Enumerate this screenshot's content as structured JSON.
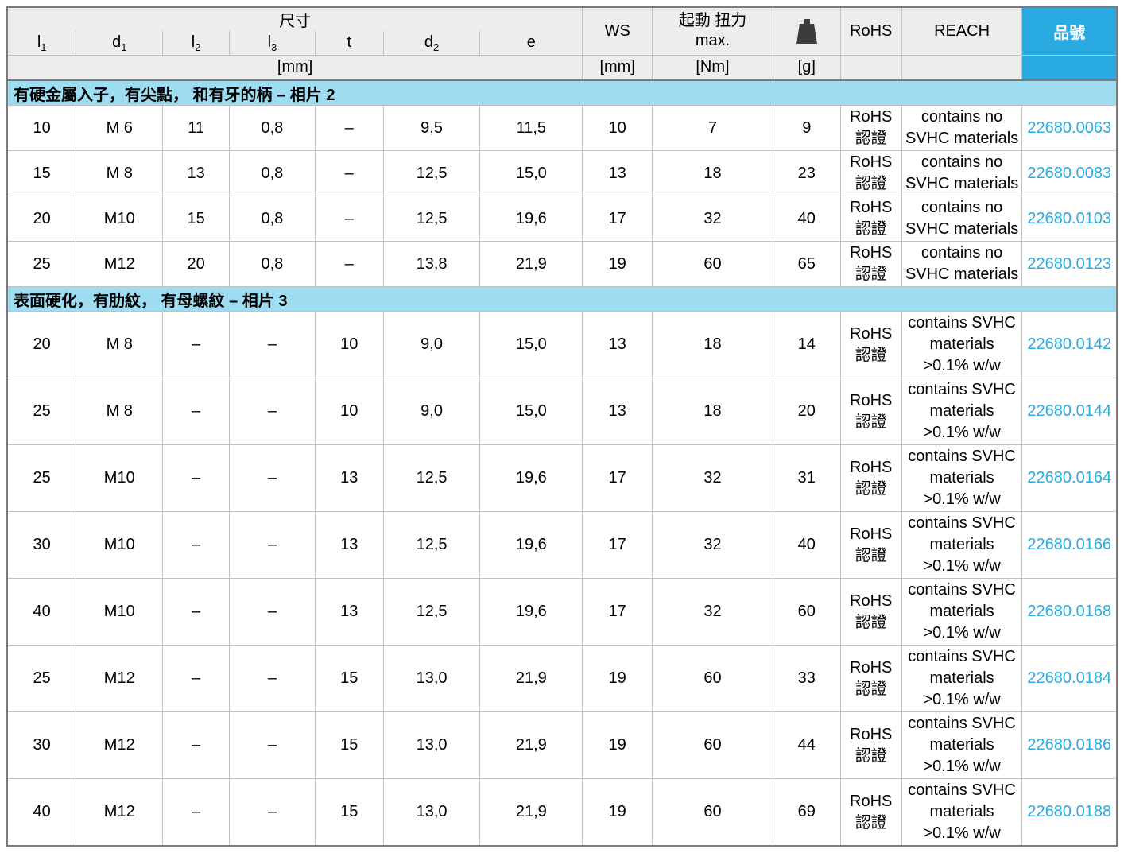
{
  "table": {
    "header": {
      "dim_group": "尺寸",
      "dim_unit": "[mm]",
      "dims": [
        {
          "base": "l",
          "sub": "1"
        },
        {
          "base": "d",
          "sub": "1"
        },
        {
          "base": "l",
          "sub": "2"
        },
        {
          "base": "l",
          "sub": "3"
        },
        {
          "base": "t",
          "sub": ""
        },
        {
          "base": "d",
          "sub": "2"
        },
        {
          "base": "e",
          "sub": ""
        }
      ],
      "ws_label": "WS",
      "ws_unit": "[mm]",
      "torque_label": "起動 扭力",
      "torque_label_2": "max.",
      "torque_unit": "[Nm]",
      "weight_icon": "weight-icon",
      "weight_unit": "[g]",
      "rohs_label": "RoHS",
      "reach_label": "REACH",
      "part_label": "品號"
    },
    "sections": [
      {
        "title": "有硬金屬入子，有尖點， 和有牙的柄 – 相片 2",
        "rohs_lines": [
          "RoHS",
          "認證"
        ],
        "reach_lines": [
          "contains no",
          "SVHC materials"
        ],
        "rows": [
          {
            "l1": "10",
            "d1": "M 6",
            "l2": "11",
            "l3": "0,8",
            "t": "–",
            "d2": "9,5",
            "e": "11,5",
            "ws": "10",
            "torque": "7",
            "weight": "9",
            "part": "22680.0063"
          },
          {
            "l1": "15",
            "d1": "M 8",
            "l2": "13",
            "l3": "0,8",
            "t": "–",
            "d2": "12,5",
            "e": "15,0",
            "ws": "13",
            "torque": "18",
            "weight": "23",
            "part": "22680.0083"
          },
          {
            "l1": "20",
            "d1": "M10",
            "l2": "15",
            "l3": "0,8",
            "t": "–",
            "d2": "12,5",
            "e": "19,6",
            "ws": "17",
            "torque": "32",
            "weight": "40",
            "part": "22680.0103"
          },
          {
            "l1": "25",
            "d1": "M12",
            "l2": "20",
            "l3": "0,8",
            "t": "–",
            "d2": "13,8",
            "e": "21,9",
            "ws": "19",
            "torque": "60",
            "weight": "65",
            "part": "22680.0123"
          }
        ]
      },
      {
        "title": "表面硬化，有肋紋， 有母螺紋 – 相片 3",
        "rohs_lines": [
          "RoHS",
          "認證"
        ],
        "reach_lines": [
          "contains SVHC",
          "materials",
          ">0.1% w/w"
        ],
        "rows": [
          {
            "l1": "20",
            "d1": "M 8",
            "l2": "–",
            "l3": "–",
            "t": "10",
            "d2": "9,0",
            "e": "15,0",
            "ws": "13",
            "torque": "18",
            "weight": "14",
            "part": "22680.0142"
          },
          {
            "l1": "25",
            "d1": "M 8",
            "l2": "–",
            "l3": "–",
            "t": "10",
            "d2": "9,0",
            "e": "15,0",
            "ws": "13",
            "torque": "18",
            "weight": "20",
            "part": "22680.0144"
          },
          {
            "l1": "25",
            "d1": "M10",
            "l2": "–",
            "l3": "–",
            "t": "13",
            "d2": "12,5",
            "e": "19,6",
            "ws": "17",
            "torque": "32",
            "weight": "31",
            "part": "22680.0164"
          },
          {
            "l1": "30",
            "d1": "M10",
            "l2": "–",
            "l3": "–",
            "t": "13",
            "d2": "12,5",
            "e": "19,6",
            "ws": "17",
            "torque": "32",
            "weight": "40",
            "part": "22680.0166"
          },
          {
            "l1": "40",
            "d1": "M10",
            "l2": "–",
            "l3": "–",
            "t": "13",
            "d2": "12,5",
            "e": "19,6",
            "ws": "17",
            "torque": "32",
            "weight": "60",
            "part": "22680.0168"
          },
          {
            "l1": "25",
            "d1": "M12",
            "l2": "–",
            "l3": "–",
            "t": "15",
            "d2": "13,0",
            "e": "21,9",
            "ws": "19",
            "torque": "60",
            "weight": "33",
            "part": "22680.0184"
          },
          {
            "l1": "30",
            "d1": "M12",
            "l2": "–",
            "l3": "–",
            "t": "15",
            "d2": "13,0",
            "e": "21,9",
            "ws": "19",
            "torque": "60",
            "weight": "44",
            "part": "22680.0186"
          },
          {
            "l1": "40",
            "d1": "M12",
            "l2": "–",
            "l3": "–",
            "t": "15",
            "d2": "13,0",
            "e": "21,9",
            "ws": "19",
            "torque": "60",
            "weight": "69",
            "part": "22680.0188"
          }
        ]
      }
    ],
    "colors": {
      "accent_cyan": "#29abe2",
      "section_blue": "#9edcf2",
      "header_gray": "#ededed"
    }
  }
}
